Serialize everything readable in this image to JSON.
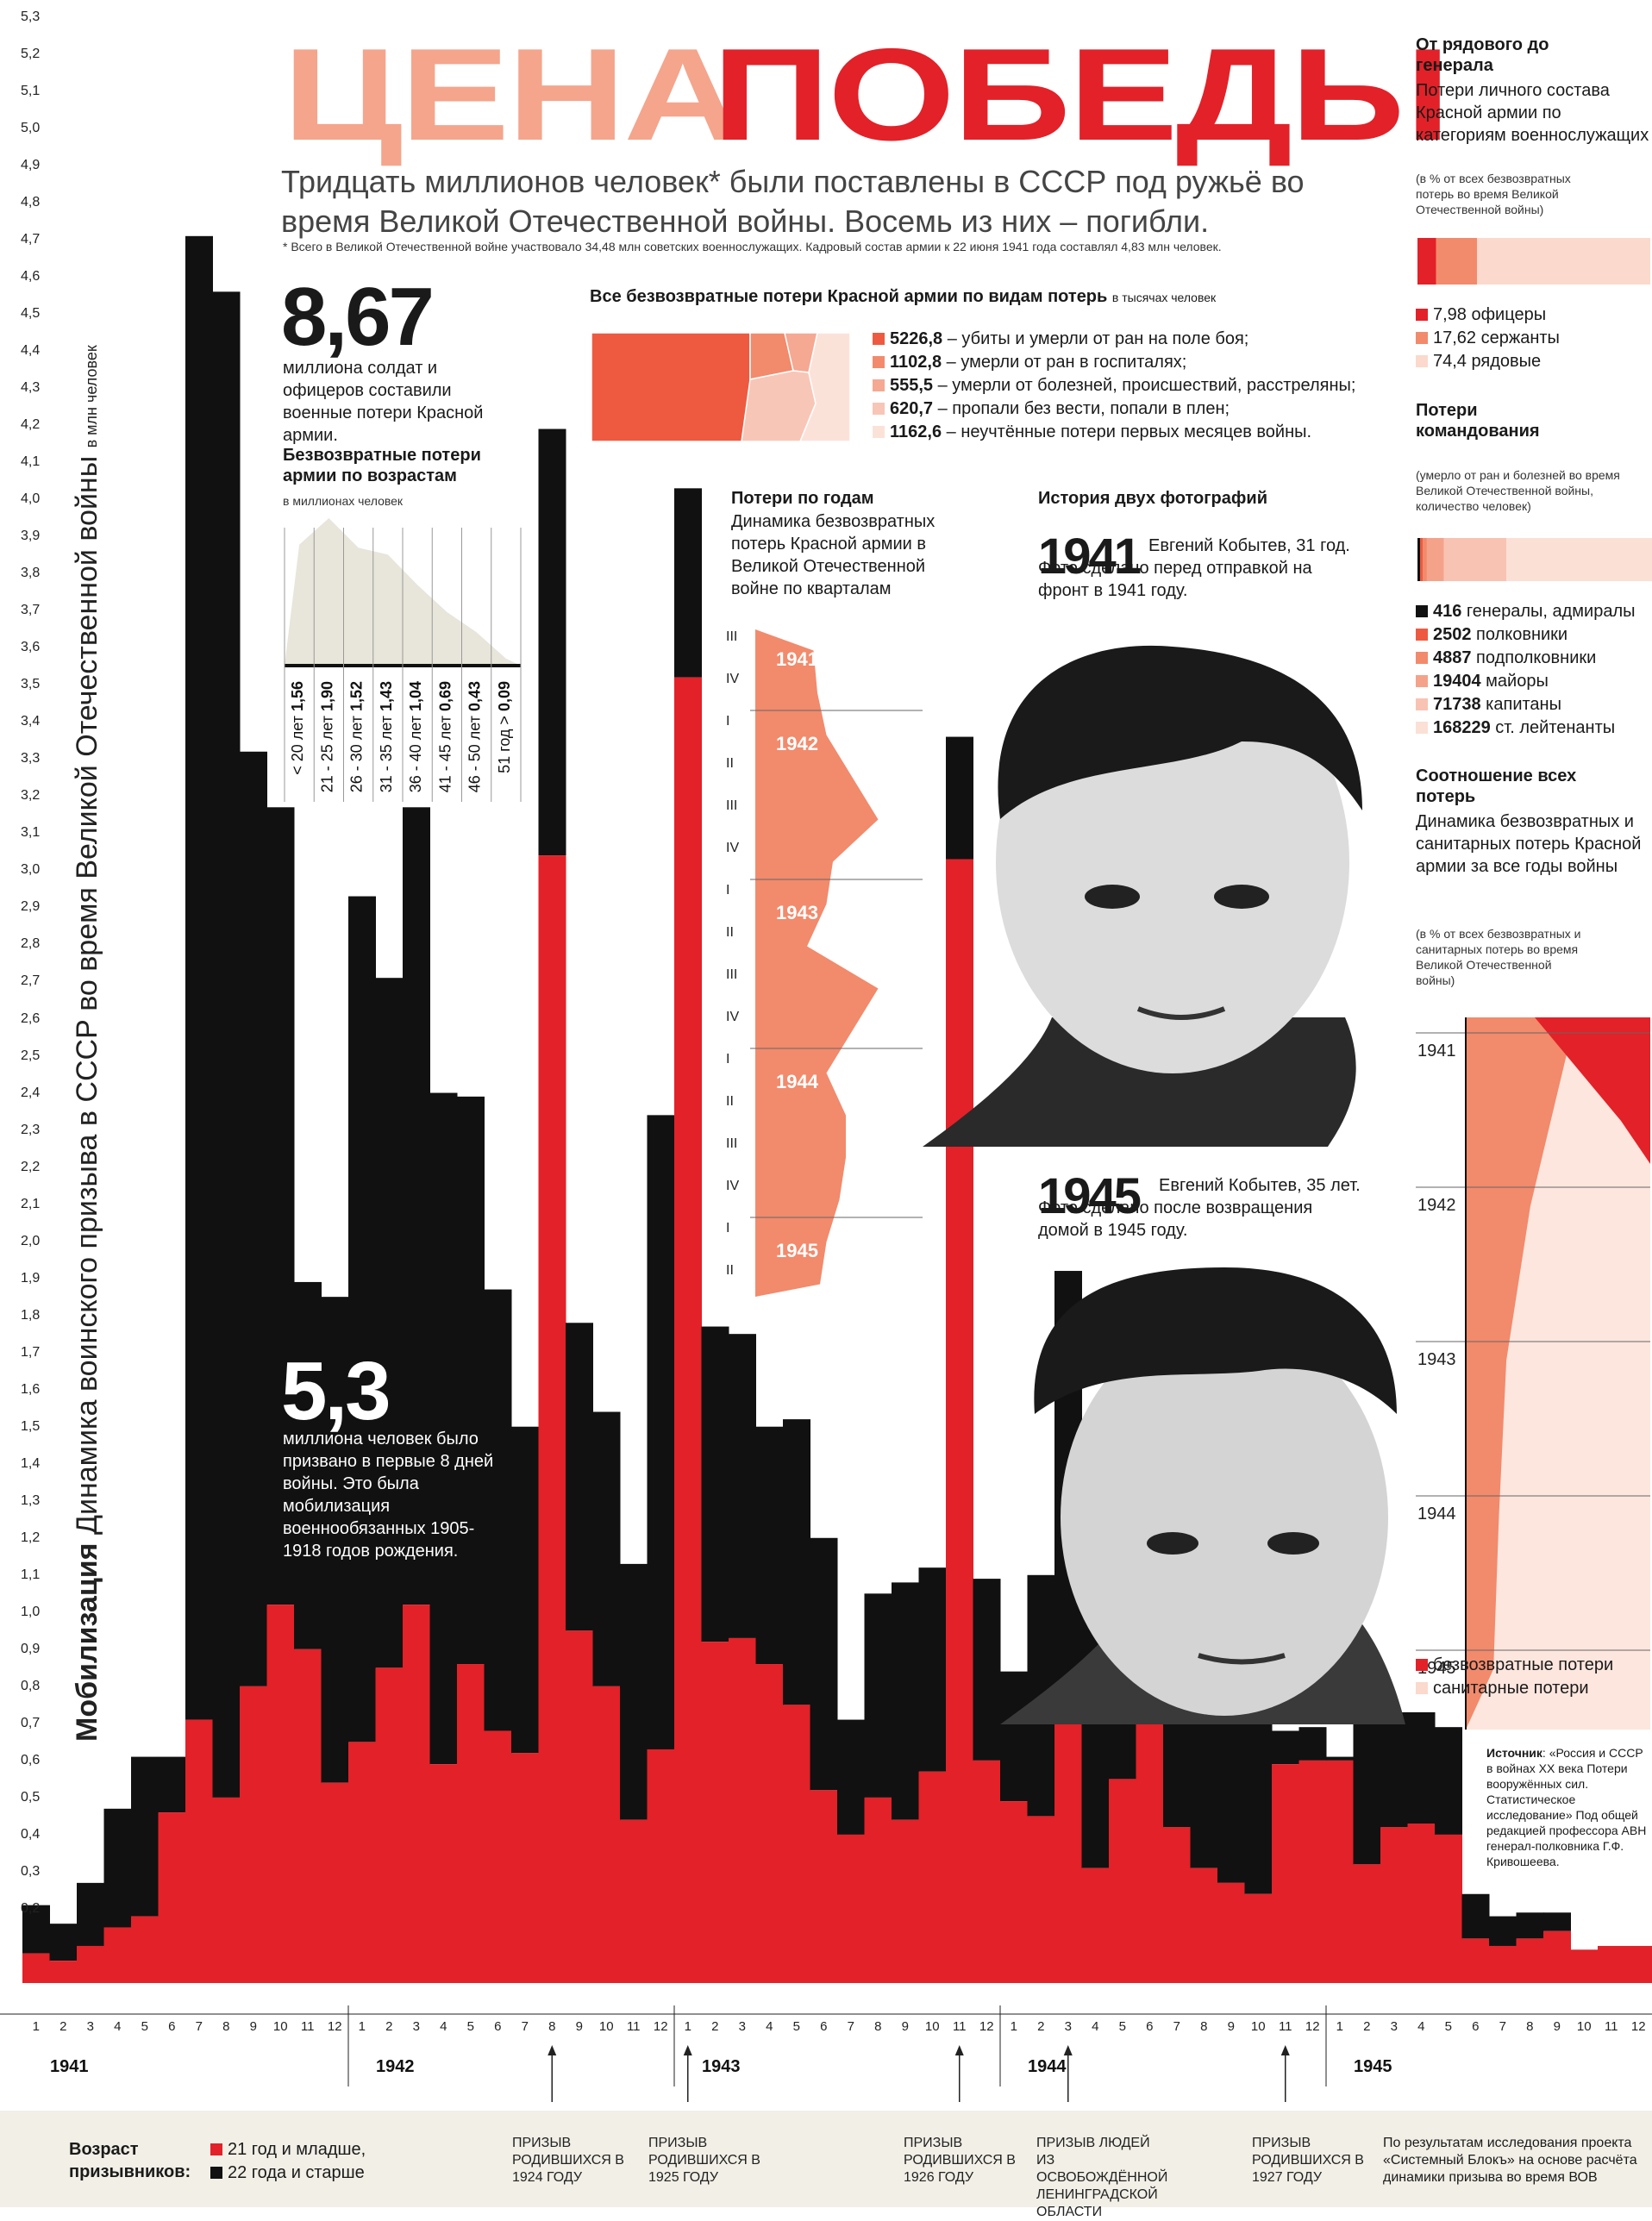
{
  "header": {
    "title_part1": "ЦЕНА",
    "title_part2": "ПОБЕДЫ",
    "subtitle": "Тридцать миллионов человек* были поставлены в СССР под ружьё во время Великой Отечественной войны. Восемь из них – погибли.",
    "footnote": "* Всего в Великой Отечественной войне участвовало 34,48 млн советских военнослужащих. Кадровый состав армии к 22 июня 1941 года составлял 4,83 млн человек."
  },
  "stat_867": {
    "number": "8,67",
    "text": "миллиона солдат и офицеров составили военные потери Красной армии."
  },
  "stat_53": {
    "number": "5,3",
    "text": "миллиона человек было призвано в первые 8 дней войны. Это была мобилизация военнообязанных 1905-1918 годов рождения."
  },
  "losses_by_type": {
    "title": "Все безвозвратные потери Красной армии по видам потерь",
    "unit": "в тысячах человек",
    "items": [
      {
        "value": "5226,8",
        "label": "– убиты и умерли от ран на поле боя;",
        "color": "#ee5a40"
      },
      {
        "value": "1102,8",
        "label": "– умерли от ран в госпиталях;",
        "color": "#f28a6c"
      },
      {
        "value": "555,5",
        "label": "– умерли от болезней, происшествий, расстреляны;",
        "color": "#f5a892"
      },
      {
        "value": "620,7",
        "label": "– пропали без вести, попали в плен;",
        "color": "#f8c6b7"
      },
      {
        "value": "1162,6",
        "label": "– неучтённые потери первых месяцев войны.",
        "color": "#fbe2d9"
      }
    ]
  },
  "age_chart": {
    "title": "Безвозвратные потери армии по возрастам",
    "unit": "в миллионах человек",
    "rows": [
      {
        "label": "< 20 лет",
        "value": "1,56"
      },
      {
        "label": "21 - 25 лет",
        "value": "1,90"
      },
      {
        "label": "26 - 30 лет",
        "value": "1,52"
      },
      {
        "label": "31 - 35 лет",
        "value": "1,43"
      },
      {
        "label": "36 - 40 лет",
        "value": "1,04"
      },
      {
        "label": "41 - 45 лет",
        "value": "0,69"
      },
      {
        "label": "46 - 50 лет",
        "value": "0,43"
      },
      {
        "label": "51 год >",
        "value": "0,09"
      }
    ]
  },
  "by_year": {
    "title": "Потери по годам",
    "desc": "Динамика безвозвратных потерь Красной армии в Великой Отечественной войне по кварталам",
    "years": [
      "1941",
      "1942",
      "1943",
      "1944",
      "1945"
    ],
    "quarters": [
      "III",
      "IV",
      "I",
      "II",
      "III",
      "IV",
      "I",
      "II",
      "III",
      "IV",
      "I",
      "II",
      "III",
      "IV",
      "I",
      "II"
    ]
  },
  "photos": {
    "title": "История двух фотографий",
    "y1": "1941",
    "t1": "Евгений Кобытев, 31 год. Фото сделано перед отправкой на фронт в 1941 году.",
    "y2": "1945",
    "t2": "Евгений Кобытев, 35 лет. Фото сделано после возвращения домой в 1945 году."
  },
  "right": {
    "rank_title": "От рядового до генерала",
    "rank_desc": "Потери личного состава Красной армии по категориям военнослужащих",
    "rank_note": "(в % от всех безвозвратных потерь во время Великой Отечественной войны)",
    "rank_items": [
      {
        "text": "7,98 офицеры",
        "color": "#e32128"
      },
      {
        "text": "17,62 сержанты",
        "color": "#f28a6c"
      },
      {
        "text": "74,4 рядовые",
        "color": "#fbd9cd"
      }
    ],
    "cmd_title": "Потери командования",
    "cmd_note": "(умерло от ран и болезней во время Великой Отечественной войны, количество человек)",
    "cmd_items": [
      {
        "num": "416",
        "text": "генералы, адмиралы",
        "color": "#111111"
      },
      {
        "num": "2502",
        "text": "полковники",
        "color": "#ee5a40"
      },
      {
        "num": "4887",
        "text": "подполковники",
        "color": "#f28a6c"
      },
      {
        "num": "19404",
        "text": "майоры",
        "color": "#f4a38a"
      },
      {
        "num": "71738",
        "text": "капитаны",
        "color": "#f8c3b3"
      },
      {
        "num": "168229",
        "text": "ст. лейтенанты",
        "color": "#fbe0d6"
      }
    ],
    "ratio_title": "Соотношение всех потерь",
    "ratio_desc": "Динамика безвозвратных и санитарных потерь Красной армии за все годы войны",
    "ratio_note": "(в % от всех безвозвратных и санитарных потерь во время Великой Отечественной войны)",
    "ratio_years": [
      "1941",
      "1942",
      "1943",
      "1944",
      "1945"
    ],
    "ratio_legend": [
      {
        "text": "безвозвратные потери",
        "color": "#e32128"
      },
      {
        "text": "санитарные потери",
        "color": "#fbd9cd"
      }
    ],
    "source_label": "Источник",
    "source_text": "«Россия и СССР в войнах XX века Потери вооружённых сил. Статистическое исследование» Под общей редакцией профессора АВН генерал-полковника Г.Ф. Кривошеева."
  },
  "axis_title": {
    "bold": "Мобилизация",
    "text": "Динамика воинского призыва в СССР во время Великой Отечественной войны",
    "unit": "в млн человек"
  },
  "footer": {
    "age_label": "Возраст призывников:",
    "legend": [
      {
        "text": "21 год и младше,",
        "color": "#e32128"
      },
      {
        "text": "22 года и старше",
        "color": "#111111"
      }
    ],
    "events": [
      "Призыв родившихся в 1924 году",
      "Призыв родившихся в 1925 году",
      "Призыв родившихся в 1926 году",
      "Призыв людей из освобождённой Ленинградской области",
      "Призыв родившихся в 1927 году"
    ],
    "project": "По результатам исследования проекта «Системный Блокъ» на основе расчёта динамики призыва во время ВОВ"
  },
  "chart_data": {
    "type": "bar",
    "title": "Мобилизация",
    "ylabel": "Динамика воинского призыва в СССР во время Великой Отечественной войны",
    "yunit": "в млн человек",
    "ylim": [
      0,
      5.3
    ],
    "yticks": [
      "5,3",
      "5,2",
      "5,1",
      "5,0",
      "4,9",
      "4,8",
      "4,7",
      "4,6",
      "4,5",
      "4,4",
      "4,3",
      "4,2",
      "4,1",
      "4,0",
      "3,9",
      "3,8",
      "3,7",
      "3,6",
      "3,5",
      "3,4",
      "3,3",
      "3,2",
      "3,1",
      "3,0",
      "2,9",
      "2,8",
      "2,7",
      "2,6",
      "2,5",
      "2,4",
      "2,3",
      "2,2",
      "2,1",
      "2,0",
      "1,9",
      "1,8",
      "1,7",
      "1,6",
      "1,5",
      "1,4",
      "1,3",
      "1,2",
      "1,1",
      "1,0",
      "0,9",
      "0,8",
      "0,7",
      "0,6",
      "0,5",
      "0,4",
      "0,3",
      "0,2"
    ],
    "categories": [
      "1",
      "2",
      "3",
      "4",
      "5",
      "6",
      "7",
      "8",
      "9",
      "10",
      "11",
      "12",
      "1",
      "2",
      "3",
      "4",
      "5",
      "6",
      "7",
      "8",
      "9",
      "10",
      "11",
      "12",
      "1",
      "2",
      "3",
      "4",
      "5",
      "6",
      "7",
      "8",
      "9",
      "10",
      "11",
      "12",
      "1",
      "2",
      "3",
      "4",
      "5",
      "6",
      "7",
      "8",
      "9",
      "10",
      "11",
      "12",
      "1",
      "2",
      "3",
      "4",
      "5",
      "6",
      "7",
      "8",
      "9",
      "10",
      "11",
      "12"
    ],
    "year_labels": [
      "1941",
      "1942",
      "1943",
      "1944",
      "1945"
    ],
    "series": [
      {
        "name": "21 год и младше",
        "color": "#e32128",
        "values": [
          0.08,
          0.06,
          0.1,
          0.15,
          0.18,
          0.46,
          0.71,
          0.5,
          0.8,
          1.02,
          0.9,
          0.54,
          0.65,
          0.85,
          1.02,
          0.59,
          0.86,
          0.68,
          0.62,
          3.04,
          0.95,
          0.8,
          0.44,
          0.63,
          3.52,
          0.92,
          0.93,
          0.86,
          0.75,
          0.52,
          0.4,
          0.5,
          0.44,
          0.57,
          3.03,
          0.6,
          0.49,
          0.45,
          0.77,
          0.31,
          0.55,
          0.95,
          0.42,
          0.31,
          0.27,
          0.24,
          0.59,
          0.6,
          0.6,
          0.32,
          0.42,
          0.43,
          0.4,
          0.12,
          0.1,
          0.12,
          0.14,
          0.09,
          0.1,
          0.1
        ]
      },
      {
        "name": "22 года и старше",
        "color": "#111111",
        "values": [
          0.13,
          0.1,
          0.17,
          0.32,
          0.43,
          0.15,
          4.0,
          4.06,
          2.52,
          2.15,
          0.99,
          1.31,
          2.28,
          1.86,
          2.15,
          1.81,
          1.53,
          1.19,
          0.88,
          1.15,
          0.83,
          0.74,
          0.69,
          1.71,
          0.51,
          0.85,
          0.82,
          0.64,
          0.77,
          0.68,
          0.31,
          0.55,
          0.64,
          0.55,
          0.33,
          0.49,
          0.35,
          0.65,
          1.15,
          1.18,
          0.19,
          0.08,
          0.47,
          0.56,
          0.75,
          0.89,
          0.09,
          0.09,
          0.01,
          0.38,
          0.31,
          0.3,
          0.29,
          0.12,
          0.08,
          0.07,
          0.05,
          0.0,
          0.0,
          0.0
        ]
      }
    ],
    "age_losses": {
      "categories": [
        "< 20 лет",
        "21 - 25 лет",
        "26 - 30 лет",
        "31 - 35 лет",
        "36 - 40 лет",
        "41 - 45 лет",
        "46 - 50 лет",
        "51 год >"
      ],
      "values": [
        1.56,
        1.9,
        1.52,
        1.43,
        1.04,
        0.69,
        0.43,
        0.09
      ],
      "unit": "в миллионах человек"
    },
    "losses_by_type": {
      "unit": "в тысячах человек",
      "values": [
        5226.8,
        1102.8,
        555.5,
        620.7,
        1162.6
      ]
    },
    "rank_share": {
      "values": [
        7.98,
        17.62,
        74.4
      ]
    },
    "command_losses": {
      "values": [
        416,
        2502,
        4887,
        19404,
        71738,
        168229
      ]
    },
    "quarterly_losses": {
      "labels": [
        "1941 III",
        "1941 IV",
        "1942 I",
        "1942 II",
        "1942 III",
        "1942 IV",
        "1943 I",
        "1943 II",
        "1943 III",
        "1943 IV",
        "1944 I",
        "1944 II",
        "1944 III",
        "1944 IV",
        "1945 I",
        "1945 II"
      ],
      "values": [
        0.45,
        0.48,
        0.55,
        0.75,
        0.95,
        0.6,
        0.55,
        0.4,
        0.95,
        0.75,
        0.55,
        0.7,
        0.7,
        0.65,
        0.55,
        0.5
      ]
    },
    "ratio": {
      "years": [
        "1941",
        "1942",
        "1943",
        "1944",
        "1945"
      ],
      "irrecoverable": [
        0.55,
        0.35,
        0.22,
        0.18,
        0.15
      ],
      "sanitary": [
        0.45,
        0.65,
        0.78,
        0.82,
        0.85
      ]
    }
  }
}
